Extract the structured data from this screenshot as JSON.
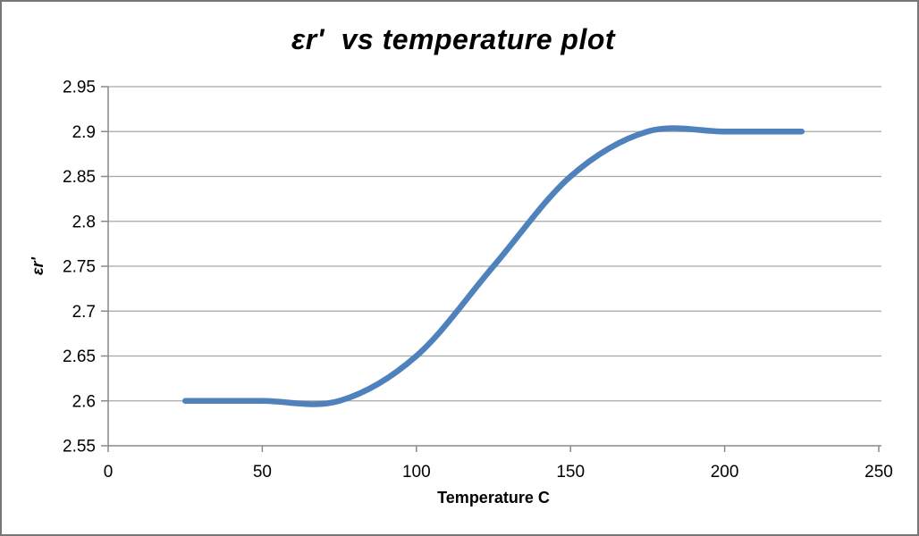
{
  "figure": {
    "title": "εr'  vs temperature plot",
    "background_color": "#FFFFFF",
    "border_color": "#767676"
  },
  "chart_data": {
    "type": "line",
    "title": "εr'  vs temperature plot",
    "xlabel": "Temperature C",
    "ylabel": "εr'",
    "x": [
      25,
      50,
      75,
      100,
      125,
      150,
      175,
      200,
      225
    ],
    "y": [
      2.6,
      2.6,
      2.6,
      2.65,
      2.75,
      2.85,
      2.9,
      2.9,
      2.9
    ],
    "xlim": [
      0,
      250
    ],
    "ylim": [
      2.55,
      2.95
    ],
    "x_ticks": [
      0,
      50,
      100,
      150,
      200,
      250
    ],
    "x_tick_labels": [
      "0",
      "50",
      "100",
      "150",
      "200",
      "250"
    ],
    "y_ticks": [
      2.55,
      2.6,
      2.65,
      2.7,
      2.75,
      2.8,
      2.85,
      2.9,
      2.95
    ],
    "y_tick_labels": [
      "2.55",
      "2.6",
      "2.65",
      "2.7",
      "2.75",
      "2.8",
      "2.85",
      "2.9",
      "2.95"
    ],
    "grid": "horizontal-gridlines-on",
    "legend": "none",
    "line_style": "smooth-spline",
    "line_color": "#4F81BD",
    "line_width": 6.5,
    "gridline_color": "#A6A6A6",
    "axis_color": "#898989",
    "tick_label_color": "#000000"
  }
}
